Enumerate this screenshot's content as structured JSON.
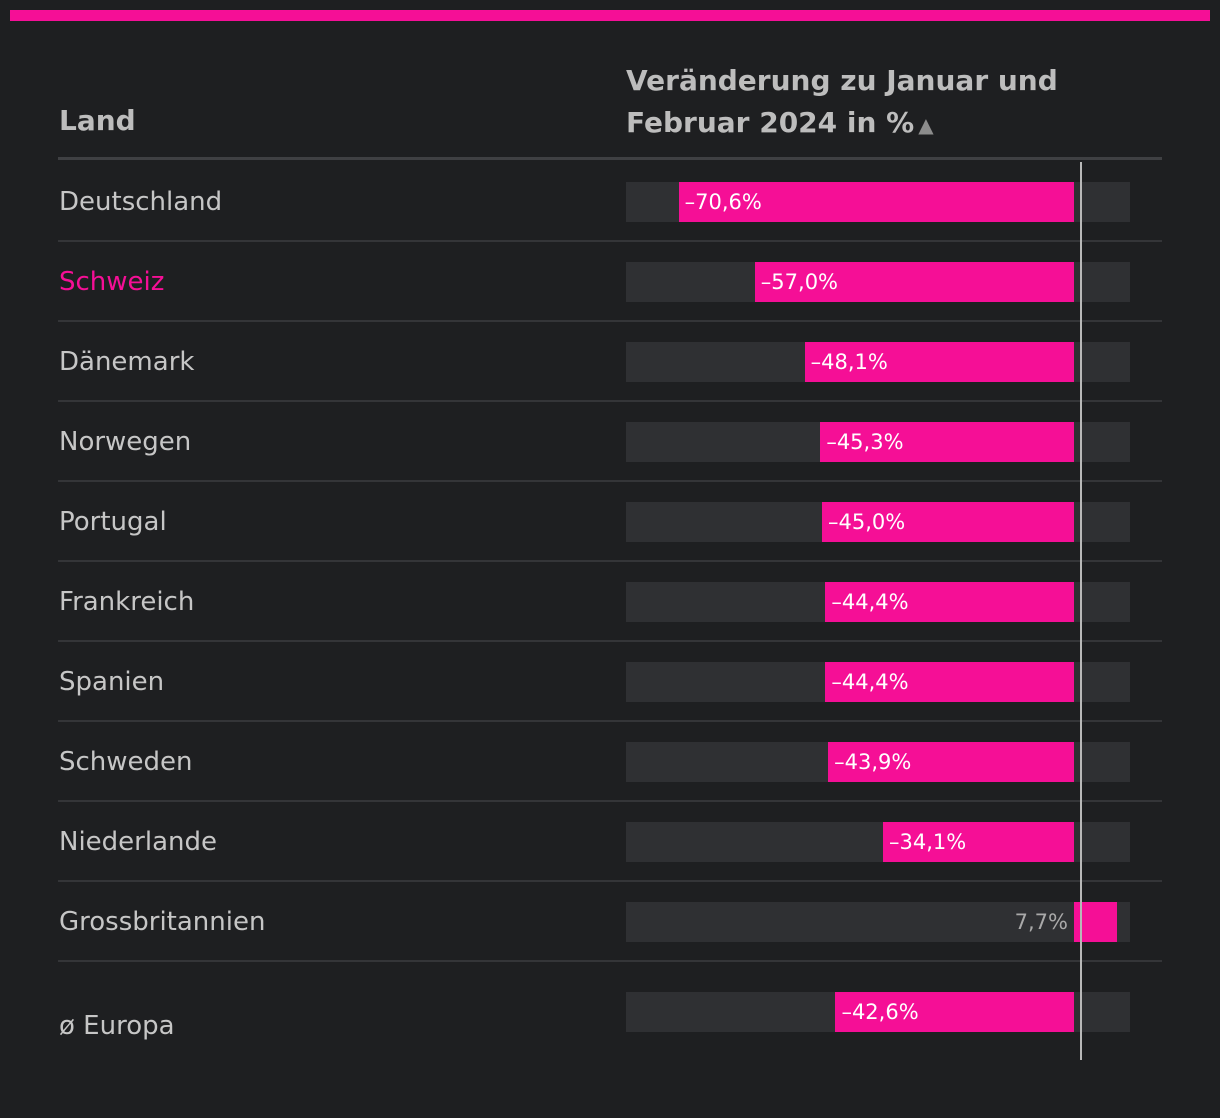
{
  "header": {
    "country_label": "Land",
    "change_label": "Veränderung zu Januar und Februar 2024 in %",
    "sort_icon": "▲"
  },
  "colors": {
    "accent": "#f50f96",
    "track": "#2f3033",
    "background": "#1e1f21"
  },
  "chart_data": {
    "type": "bar",
    "orientation": "horizontal",
    "xlabel": "Veränderung zu Januar und Februar 2024 in %",
    "xlim": [
      -80,
      10
    ],
    "rows": [
      {
        "country": "Deutschland",
        "value": -70.6,
        "label": "–70,6%",
        "highlight": false
      },
      {
        "country": "Schweiz",
        "value": -57.0,
        "label": "–57,0%",
        "highlight": true
      },
      {
        "country": "Dänemark",
        "value": -48.1,
        "label": "–48,1%",
        "highlight": false
      },
      {
        "country": "Norwegen",
        "value": -45.3,
        "label": "–45,3%",
        "highlight": false
      },
      {
        "country": "Portugal",
        "value": -45.0,
        "label": "–45,0%",
        "highlight": false
      },
      {
        "country": "Frankreich",
        "value": -44.4,
        "label": "–44,4%",
        "highlight": false
      },
      {
        "country": "Spanien",
        "value": -44.4,
        "label": "–44,4%",
        "highlight": false
      },
      {
        "country": "Schweden",
        "value": -43.9,
        "label": "–43,9%",
        "highlight": false
      },
      {
        "country": "Niederlande",
        "value": -34.1,
        "label": "–34,1%",
        "highlight": false
      },
      {
        "country": "Grossbritannien",
        "value": 7.7,
        "label": "7,7%",
        "highlight": false
      },
      {
        "country": "ø Europa",
        "value": -42.6,
        "label": "–42,6%",
        "highlight": false
      }
    ]
  }
}
